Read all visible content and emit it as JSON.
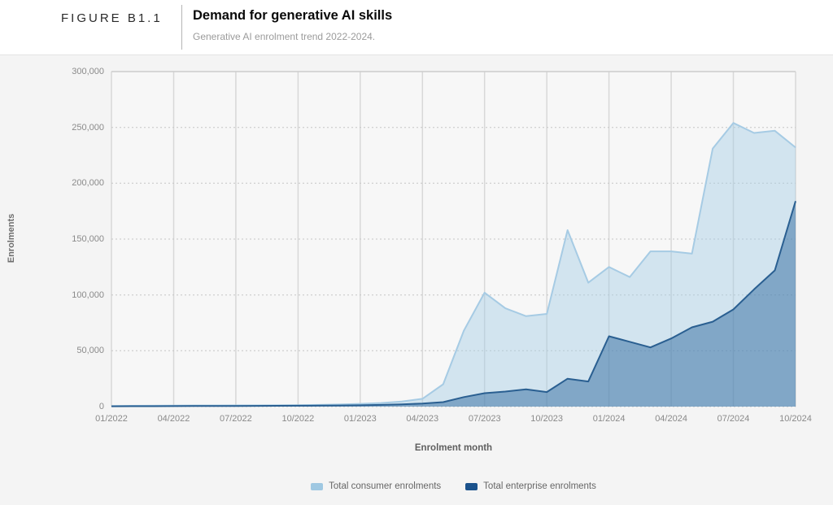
{
  "figure": {
    "label": "FIGURE B1.1",
    "title": "Demand for generative AI skills",
    "subtitle": "Generative AI enrolment trend 2022-2024."
  },
  "chart_data": {
    "type": "area",
    "title": "Demand for generative AI skills",
    "subtitle": "Generative AI enrolment trend 2022-2024.",
    "xlabel": "Enrolment month",
    "ylabel": "Enrolments",
    "ylim": [
      0,
      300000
    ],
    "y_ticks": [
      0,
      50000,
      100000,
      150000,
      200000,
      250000,
      300000
    ],
    "y_tick_labels": [
      "0",
      "50,000",
      "100,000",
      "150,000",
      "200,000",
      "250,000",
      "300,000"
    ],
    "x_tick_labels": [
      "01/2022",
      "04/2022",
      "07/2022",
      "10/2022",
      "01/2023",
      "04/2023",
      "07/2023",
      "10/2023",
      "01/2024",
      "04/2024",
      "07/2024",
      "10/2024"
    ],
    "x": [
      "01/2022",
      "02/2022",
      "03/2022",
      "04/2022",
      "05/2022",
      "06/2022",
      "07/2022",
      "08/2022",
      "09/2022",
      "10/2022",
      "11/2022",
      "12/2022",
      "01/2023",
      "02/2023",
      "03/2023",
      "04/2023",
      "05/2023",
      "06/2023",
      "07/2023",
      "08/2023",
      "09/2023",
      "10/2023",
      "11/2023",
      "12/2023",
      "01/2024",
      "02/2024",
      "03/2024",
      "04/2024",
      "05/2024",
      "06/2024",
      "07/2024",
      "08/2024",
      "09/2024",
      "10/2024"
    ],
    "grid": {
      "vertical": "solid",
      "horizontal": "dotted"
    },
    "legend_position": "bottom",
    "series": [
      {
        "name": "Total consumer enrolments",
        "stroke": "#a6cbe4",
        "fill": "rgba(165,203,229,0.45)",
        "legend_color": "#9fc8e2",
        "values": [
          600,
          700,
          800,
          900,
          1000,
          1000,
          1100,
          1100,
          1200,
          1300,
          1500,
          1900,
          2500,
          3200,
          4500,
          7000,
          20000,
          68000,
          102000,
          88000,
          81000,
          83000,
          158000,
          111000,
          125000,
          116000,
          139000,
          139000,
          137000,
          231000,
          254000,
          245000,
          247000,
          232000
        ]
      },
      {
        "name": "Total enterprise enrolments",
        "stroke": "#2a5f91",
        "fill": "rgba(47,105,160,0.5)",
        "legend_color": "#1b528c",
        "values": [
          300,
          350,
          400,
          450,
          500,
          550,
          600,
          650,
          700,
          800,
          900,
          1000,
          1200,
          1500,
          2000,
          2800,
          4000,
          8500,
          12000,
          13500,
          15500,
          13000,
          25000,
          22500,
          63000,
          58000,
          53000,
          61000,
          71000,
          76000,
          87000,
          105000,
          122000,
          184000
        ]
      }
    ]
  }
}
